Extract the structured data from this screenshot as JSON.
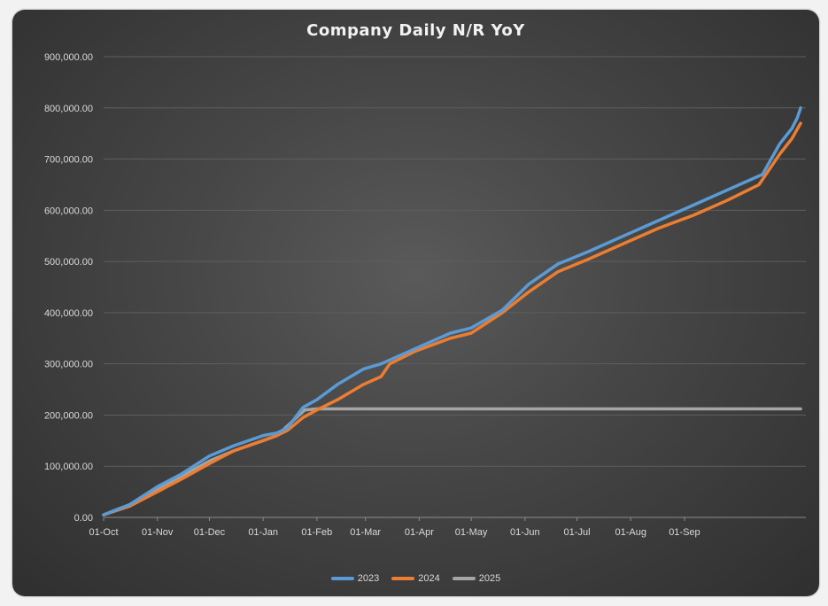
{
  "chart_data": {
    "type": "line",
    "title": "Company Daily N/R YoY",
    "xlabel": "",
    "ylabel": "",
    "ylim": [
      0,
      900000
    ],
    "yticks": [
      "0.00",
      "100,000.00",
      "200,000.00",
      "300,000.00",
      "400,000.00",
      "500,000.00",
      "600,000.00",
      "700,000.00",
      "800,000.00",
      "900,000.00"
    ],
    "xticks": [
      "01-Oct",
      "01-Nov",
      "01-Dec",
      "01-Jan",
      "01-Feb",
      "01-Mar",
      "01-Apr",
      "01-May",
      "01-Jun",
      "01-Jul",
      "01-Aug",
      "01-Sep"
    ],
    "x_day_range": [
      0,
      365
    ],
    "grid": true,
    "legend": "bottom",
    "series": [
      {
        "name": "2023",
        "color": "#5b9bd5",
        "points": [
          [
            0,
            5000
          ],
          [
            15,
            25000
          ],
          [
            31,
            60000
          ],
          [
            45,
            85000
          ],
          [
            61,
            120000
          ],
          [
            75,
            140000
          ],
          [
            92,
            160000
          ],
          [
            100,
            165000
          ],
          [
            106,
            175000
          ],
          [
            115,
            215000
          ],
          [
            123,
            230000
          ],
          [
            135,
            260000
          ],
          [
            150,
            290000
          ],
          [
            160,
            300000
          ],
          [
            180,
            330000
          ],
          [
            200,
            360000
          ],
          [
            212,
            370000
          ],
          [
            230,
            405000
          ],
          [
            245,
            455000
          ],
          [
            262,
            495000
          ],
          [
            280,
            520000
          ],
          [
            300,
            550000
          ],
          [
            320,
            580000
          ],
          [
            340,
            610000
          ],
          [
            360,
            640000
          ],
          [
            380,
            670000
          ],
          [
            390,
            730000
          ],
          [
            397,
            760000
          ],
          [
            400,
            780000
          ],
          [
            402,
            800000
          ]
        ]
      },
      {
        "name": "2024",
        "color": "#ed7d31",
        "points": [
          [
            0,
            5000
          ],
          [
            15,
            22000
          ],
          [
            31,
            50000
          ],
          [
            45,
            75000
          ],
          [
            61,
            105000
          ],
          [
            75,
            130000
          ],
          [
            92,
            150000
          ],
          [
            100,
            160000
          ],
          [
            106,
            170000
          ],
          [
            115,
            195000
          ],
          [
            123,
            210000
          ],
          [
            135,
            230000
          ],
          [
            150,
            260000
          ],
          [
            160,
            275000
          ],
          [
            165,
            300000
          ],
          [
            180,
            325000
          ],
          [
            200,
            350000
          ],
          [
            212,
            360000
          ],
          [
            230,
            400000
          ],
          [
            245,
            440000
          ],
          [
            262,
            480000
          ],
          [
            280,
            505000
          ],
          [
            300,
            535000
          ],
          [
            320,
            565000
          ],
          [
            340,
            590000
          ],
          [
            360,
            620000
          ],
          [
            378,
            650000
          ],
          [
            390,
            710000
          ],
          [
            397,
            740000
          ],
          [
            402,
            770000
          ]
        ]
      },
      {
        "name": "2025",
        "color": "#a5a5a5",
        "points": [
          [
            0,
            5000
          ],
          [
            15,
            25000
          ],
          [
            31,
            55000
          ],
          [
            45,
            80000
          ],
          [
            61,
            110000
          ],
          [
            75,
            130000
          ],
          [
            92,
            150000
          ],
          [
            100,
            160000
          ],
          [
            108,
            185000
          ],
          [
            116,
            210000
          ],
          [
            123,
            212000
          ],
          [
            402,
            212000
          ]
        ]
      }
    ]
  }
}
